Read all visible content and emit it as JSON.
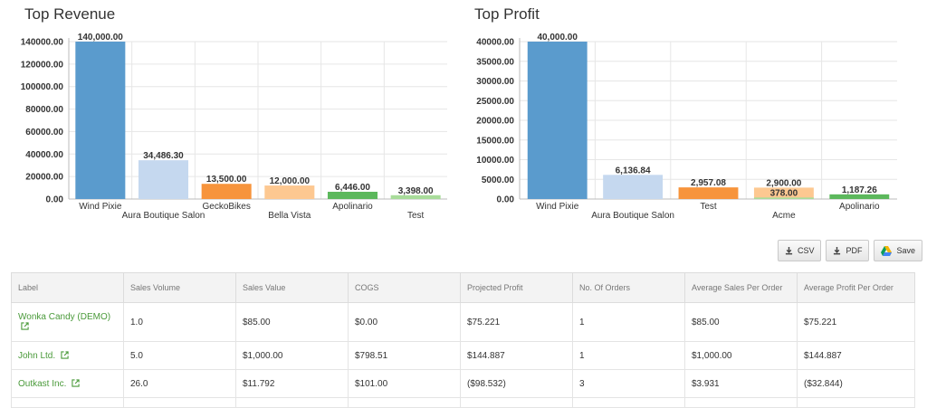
{
  "charts": {
    "revenue": {
      "title": "Top Revenue",
      "chart_data": {
        "type": "bar",
        "title": "Top Revenue",
        "categories": [
          "Wind Pixie",
          "Aura Boutique Salon",
          "GeckoBikes",
          "Bella Vista",
          "Apolinario",
          "Test"
        ],
        "values": [
          140000,
          34486.3,
          13500,
          12000,
          6446,
          3398
        ],
        "value_labels": [
          "140,000.00",
          "34,486.30",
          "13,500.00",
          "12,000.00",
          "6,446.00",
          "3,398.00"
        ],
        "colors": [
          "#5a9bcd",
          "#c5d8ef",
          "#f7943c",
          "#fdc891",
          "#5cb85c",
          "#a8dc9a"
        ],
        "ylim": [
          0,
          140000
        ],
        "yticks": [
          0,
          20000,
          40000,
          60000,
          80000,
          100000,
          120000,
          140000
        ],
        "ytick_labels": [
          "0.00",
          "20000.00",
          "40000.00",
          "60000.00",
          "80000.00",
          "100000.00",
          "120000.00",
          "140000.00"
        ],
        "grid": true
      }
    },
    "profit": {
      "title": "Top Profit",
      "chart_data": {
        "type": "bar",
        "title": "Top Profit",
        "categories": [
          "Wind Pixie",
          "Aura Boutique Salon",
          "Test",
          "Acme",
          "Apolinario"
        ],
        "values": [
          40000,
          6136.84,
          2957.08,
          2900,
          1187.26
        ],
        "value_labels": [
          "40,000.00",
          "6,136.84",
          "2,957.08",
          "2,900.00",
          "1,187.26"
        ],
        "overlay": {
          "index": 3,
          "value": 378,
          "label": "378.00",
          "color": "#a8dc9a"
        },
        "colors": [
          "#5a9bcd",
          "#c5d8ef",
          "#f7943c",
          "#fdc891",
          "#5cb85c"
        ],
        "ylim": [
          0,
          40000
        ],
        "yticks": [
          0,
          5000,
          10000,
          15000,
          20000,
          25000,
          30000,
          35000,
          40000
        ],
        "ytick_labels": [
          "0.00",
          "5000.00",
          "10000.00",
          "15000.00",
          "20000.00",
          "25000.00",
          "30000.00",
          "35000.00",
          "40000.00"
        ],
        "grid": true
      }
    }
  },
  "toolbar": {
    "csv": "CSV",
    "pdf": "PDF",
    "save": "Save"
  },
  "table": {
    "headers": [
      "Label",
      "Sales Volume",
      "Sales Value",
      "COGS",
      "Projected Profit",
      "No. Of Orders",
      "Average Sales Per Order",
      "Average Profit Per Order"
    ],
    "rows": [
      [
        "Wonka Candy (DEMO)",
        "1.0",
        "$85.00",
        "$0.00",
        "$75.221",
        "1",
        "$85.00",
        "$75.221"
      ],
      [
        "John Ltd.",
        "5.0",
        "$1,000.00",
        "$798.51",
        "$144.887",
        "1",
        "$1,000.00",
        "$144.887"
      ],
      [
        "Outkast Inc.",
        "26.0",
        "$11.792",
        "$101.00",
        "($98.532)",
        "3",
        "$3.931",
        "($32.844)"
      ]
    ]
  }
}
